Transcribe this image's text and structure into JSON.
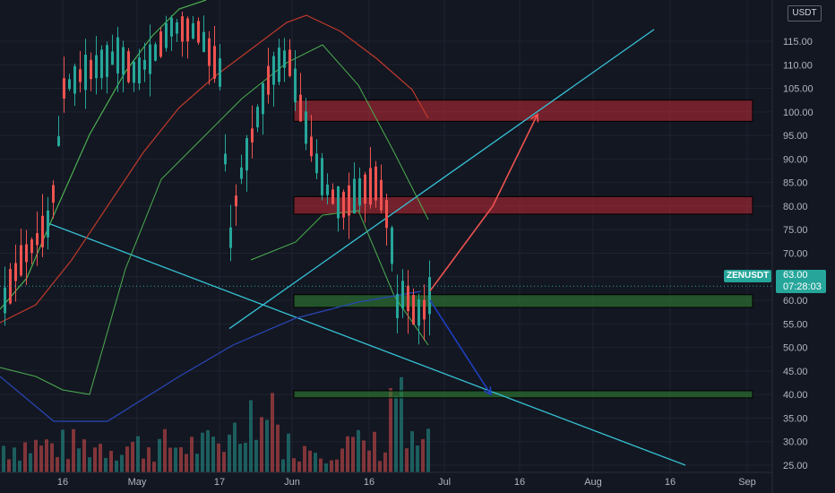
{
  "header": {
    "currency": "USDT"
  },
  "symbol": {
    "name": "ZENUSDT",
    "last_price": "63.00",
    "countdown": "07:28:03"
  },
  "colors": {
    "background": "#131722",
    "up": "#26a69a",
    "down": "#ef5350",
    "resistance_zone": "#b22833",
    "support_zone": "#2e7d32",
    "trendline": "#36c3d6",
    "bullish_arrow": "#ef5350",
    "bearish_arrow": "#1e3fc0"
  },
  "chart_data": {
    "type": "candlestick",
    "title": "",
    "xlabel": "",
    "ylabel": "",
    "y_axis": {
      "ticks": [
        "115.00",
        "110.00",
        "105.00",
        "100.00",
        "95.00",
        "90.00",
        "85.00",
        "80.00",
        "75.00",
        "70.00",
        "65.00",
        "60.00",
        "55.00",
        "50.00",
        "45.00",
        "40.00",
        "35.00",
        "30.00",
        "25.00"
      ],
      "range": [
        24,
        117
      ]
    },
    "x_axis": {
      "ticks": [
        "16",
        "May",
        "17",
        "Jun",
        "16",
        "Jul",
        "16",
        "Aug",
        "16",
        "Sep"
      ]
    },
    "zones": [
      {
        "name": "",
        "kind": "resistance",
        "low": 98,
        "high": 102.5
      },
      {
        "name": "",
        "kind": "resistance",
        "low": 78.3,
        "high": 82
      },
      {
        "name": "",
        "kind": "support",
        "low": 58.5,
        "high": 61.2
      },
      {
        "name": "",
        "kind": "support",
        "low": 39.3,
        "high": 40.8
      }
    ],
    "projections": [
      {
        "kind": "bullish",
        "points": [
          [
            480,
            62
          ],
          [
            550,
            80
          ],
          [
            600,
            99.5
          ]
        ]
      },
      {
        "kind": "bearish",
        "points": [
          [
            480,
            60
          ],
          [
            548,
            40
          ]
        ]
      }
    ],
    "last_price": 63.0
  }
}
